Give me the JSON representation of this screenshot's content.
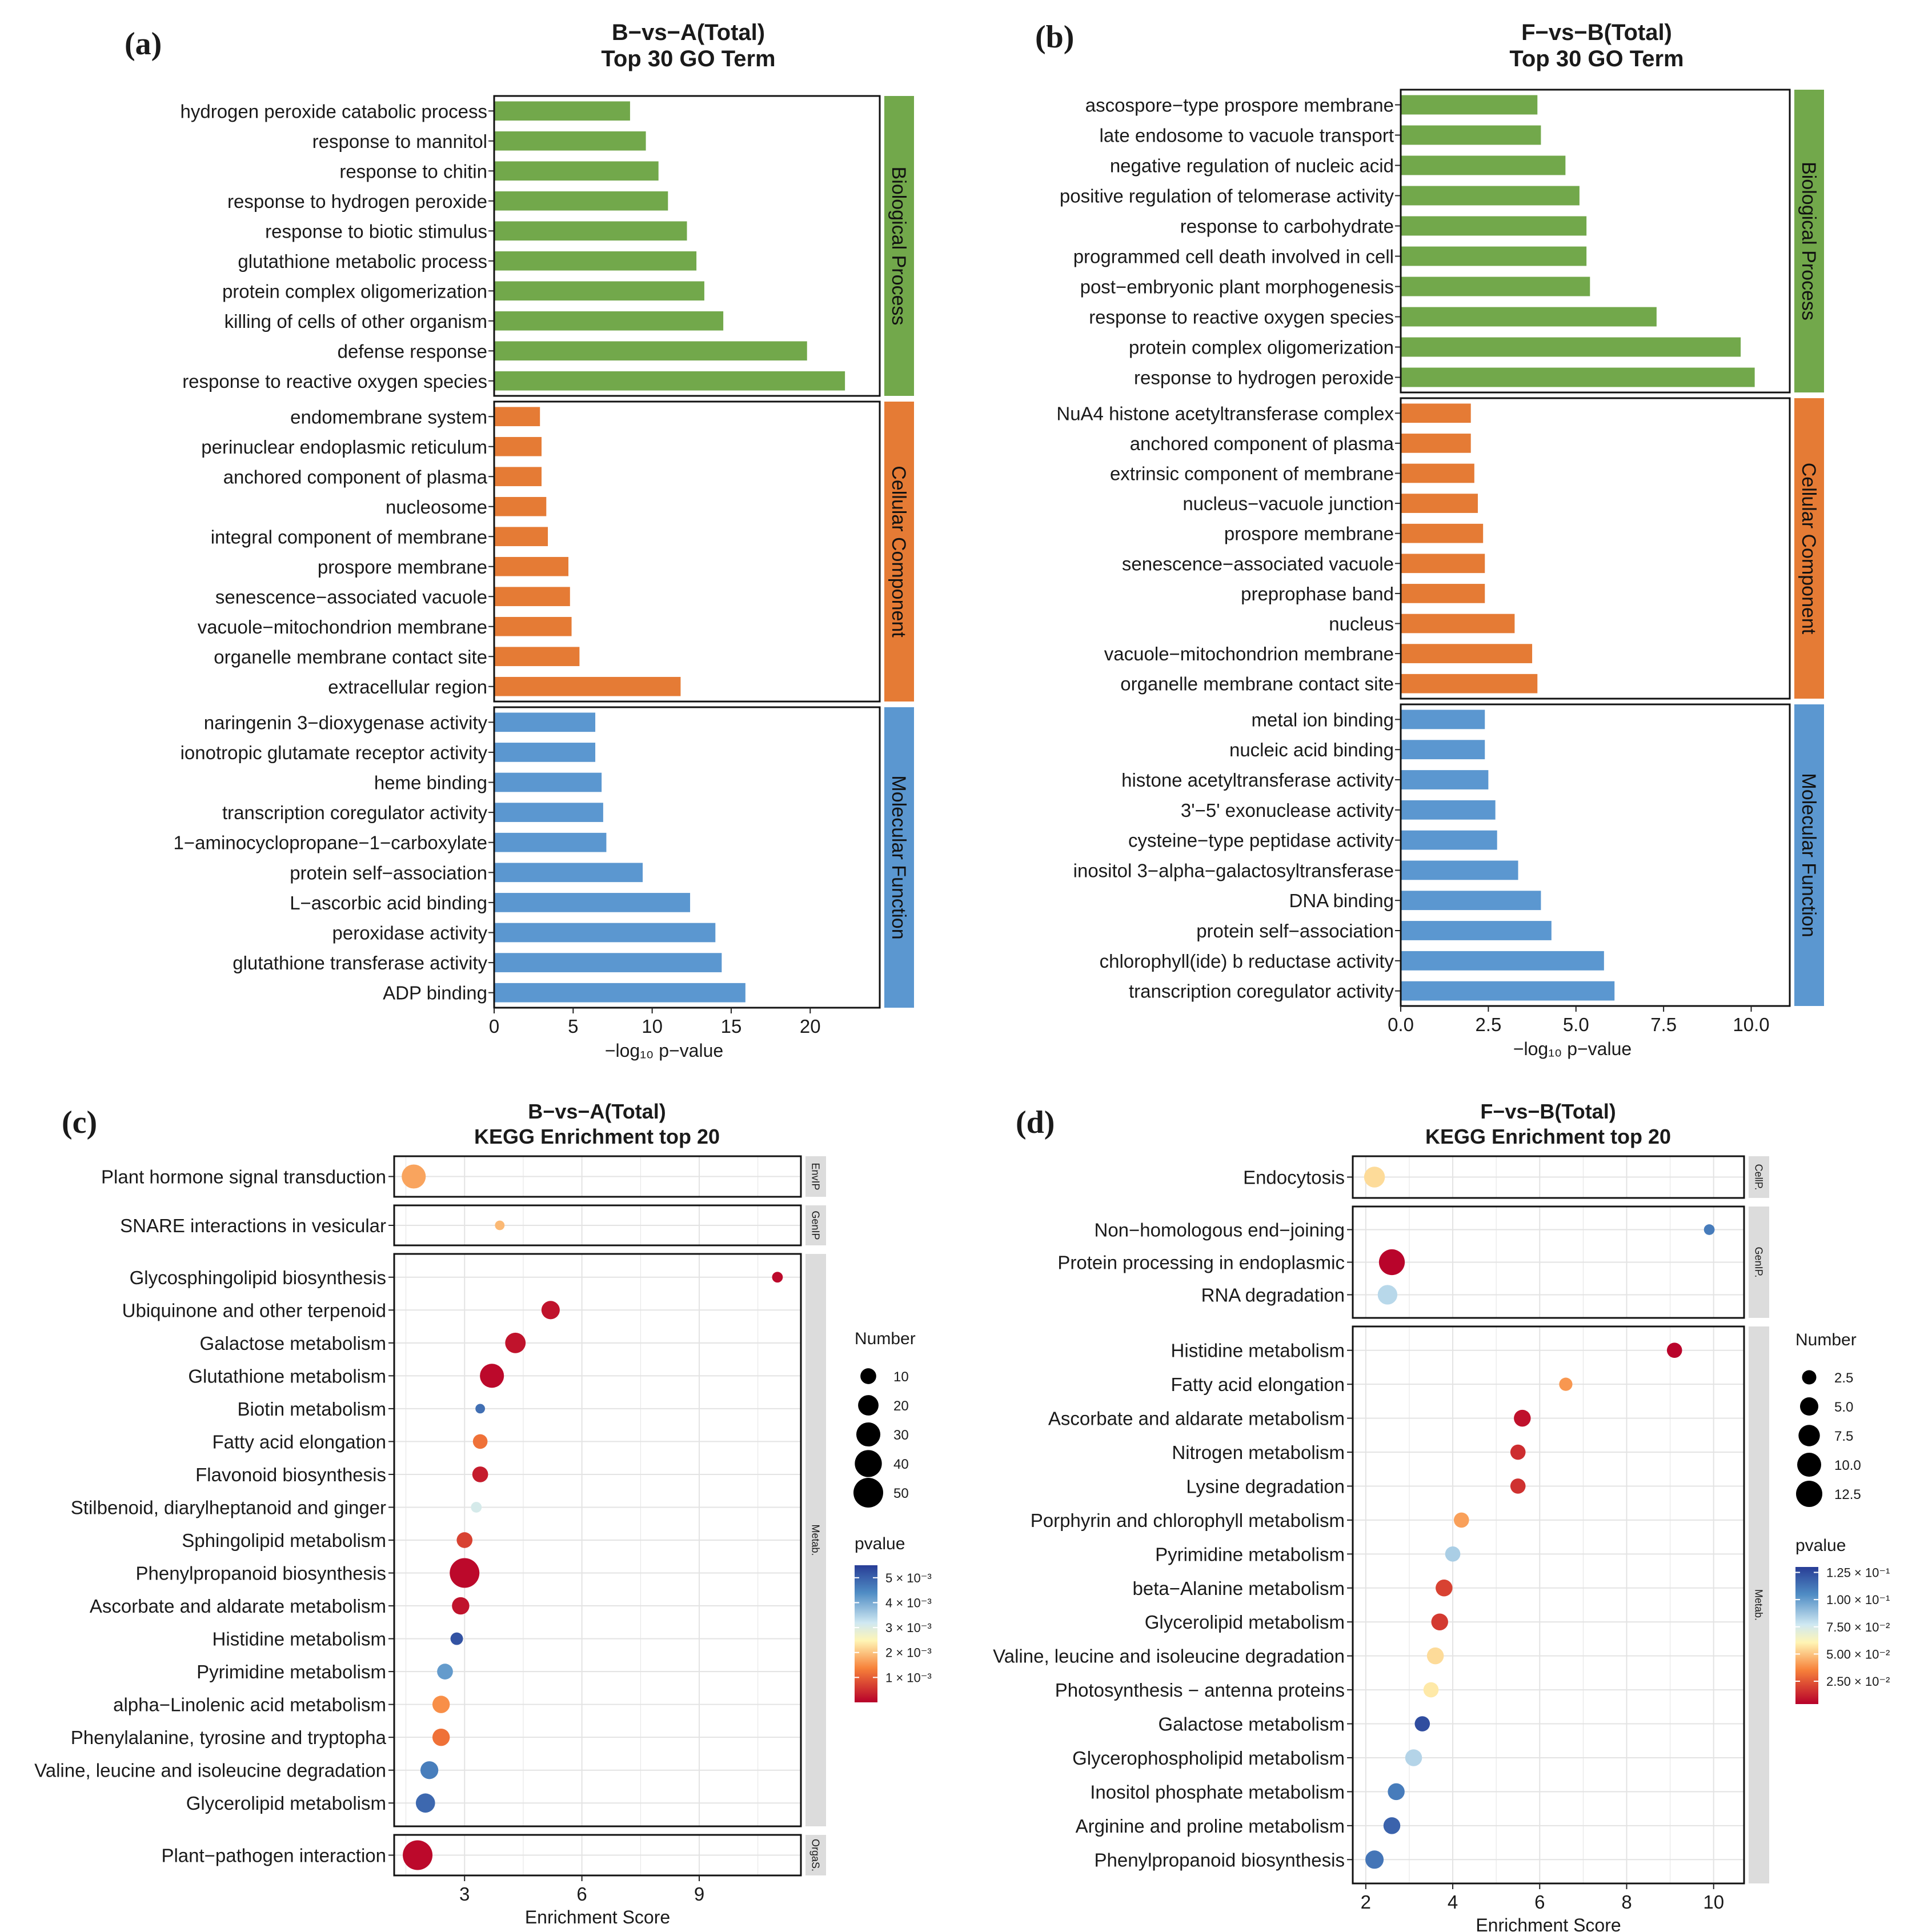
{
  "figure": {
    "panel_tags": [
      "(a)",
      "(b)",
      "(c)",
      "(d)"
    ]
  },
  "chart_data": [
    {
      "type": "bar",
      "panel": "(a)",
      "title": "B−vs−A(Total)",
      "subtitle": "Top 30 GO Term",
      "xlabel": "−log₁₀ p−value",
      "xlim": [
        0,
        24.4
      ],
      "xticks": [
        0,
        5,
        10,
        15,
        20
      ],
      "groups": [
        {
          "name": "Biological Process",
          "color": "#72a84b",
          "terms": [
            "hydrogen peroxide catabolic process",
            "response to mannitol",
            "response to chitin",
            "response to hydrogen peroxide",
            "response to biotic stimulus",
            "glutathione metabolic process",
            "protein complex oligomerization",
            "killing of cells of other organism",
            "defense response",
            "response to reactive oxygen species"
          ],
          "values": [
            8.6,
            9.6,
            10.4,
            11.0,
            12.2,
            12.8,
            13.3,
            14.5,
            19.8,
            22.2
          ]
        },
        {
          "name": "Cellular Component",
          "color": "#e57b35",
          "terms": [
            "endomembrane system",
            "perinuclear endoplasmic reticulum",
            "anchored component of plasma",
            "nucleosome",
            "integral component of membrane",
            "prospore membrane",
            "senescence−associated vacuole",
            "vacuole−mitochondrion membrane",
            "organelle membrane contact site",
            "extracellular region"
          ],
          "values": [
            2.9,
            3.0,
            3.0,
            3.3,
            3.4,
            4.7,
            4.8,
            4.9,
            5.4,
            11.8
          ]
        },
        {
          "name": "Molecular Function",
          "color": "#5b97d0",
          "terms": [
            "naringenin 3−dioxygenase activity",
            "ionotropic glutamate receptor activity",
            "heme binding",
            "transcription coregulator activity",
            "1−aminocyclopropane−1−carboxylate",
            "protein self−association",
            "L−ascorbic acid binding",
            "peroxidase activity",
            "glutathione transferase activity",
            "ADP binding"
          ],
          "values": [
            6.4,
            6.4,
            6.8,
            6.9,
            7.1,
            9.4,
            12.4,
            14.0,
            14.4,
            15.9
          ]
        }
      ]
    },
    {
      "type": "bar",
      "panel": "(b)",
      "title": "F−vs−B(Total)",
      "subtitle": "Top 30 GO Term",
      "xlabel": "−log₁₀ p−value",
      "xlim": [
        0,
        11.1
      ],
      "xticks": [
        "0.0",
        "2.5",
        "5.0",
        "7.5",
        "10.0"
      ],
      "groups": [
        {
          "name": "Biological Process",
          "color": "#72a84b",
          "terms": [
            "ascospore−type prospore membrane",
            "late endosome to vacuole transport",
            "negative regulation of nucleic acid",
            "positive regulation of telomerase activity",
            "response to carbohydrate",
            "programmed cell death involved in cell",
            "post−embryonic plant morphogenesis",
            "response to reactive oxygen species",
            "protein complex oligomerization",
            "response to hydrogen peroxide"
          ],
          "values": [
            3.9,
            4.0,
            4.7,
            5.1,
            5.3,
            5.3,
            5.4,
            7.3,
            9.7,
            10.1
          ]
        },
        {
          "name": "Cellular Component",
          "color": "#e57b35",
          "terms": [
            "NuA4 histone acetyltransferase complex",
            "anchored component of plasma",
            "extrinsic component of membrane",
            "nucleus−vacuole junction",
            "prospore membrane",
            "senescence−associated vacuole",
            "preprophase band",
            "nucleus",
            "vacuole−mitochondrion membrane",
            "organelle membrane contact site"
          ],
          "values": [
            2.0,
            2.0,
            2.1,
            2.2,
            2.35,
            2.4,
            2.4,
            3.25,
            3.75,
            3.9
          ]
        },
        {
          "name": "Molecular Function",
          "color": "#5b97d0",
          "terms": [
            "metal ion binding",
            "nucleic acid binding",
            "histone acetyltransferase activity",
            "3'−5' exonuclease activity",
            "cysteine−type peptidase activity",
            "inositol 3−alpha−galactosyltransferase",
            "DNA binding",
            "protein self−association",
            "chlorophyll(ide) b reductase activity",
            "transcription coregulator activity"
          ],
          "values": [
            2.4,
            2.4,
            2.5,
            2.7,
            2.75,
            3.35,
            4.0,
            4.3,
            5.8,
            6.1
          ]
        }
      ]
    },
    {
      "type": "scatter",
      "panel": "(c)",
      "title": "B−vs−A(Total)",
      "subtitle": "KEGG Enrichment top 20",
      "xlabel": "Enrichment Score",
      "xlim": [
        1.2,
        11.6
      ],
      "xticks": [
        3,
        6,
        9
      ],
      "size_legend": {
        "title": "Number",
        "values": [
          10,
          20,
          30,
          40,
          50
        ]
      },
      "color_legend": {
        "title": "pvalue",
        "labels": [
          "5 × 10⁻³",
          "4 × 10⁻³",
          "3 × 10⁻³",
          "2 × 10⁻³",
          "1 × 10⁻³"
        ],
        "ticks": [
          0.005,
          0.004,
          0.003,
          0.002,
          0.001
        ],
        "range": [
          0.0,
          0.0055
        ]
      },
      "groups": [
        {
          "name": "EnvIP",
          "rows": [
            {
              "term": "Plant hormone signal transduction",
              "x": 1.7,
              "n": 30,
              "p": 0.0017
            }
          ]
        },
        {
          "name": "GenIP",
          "rows": [
            {
              "term": "SNARE interactions in vesicular",
              "x": 3.9,
              "n": 2,
              "p": 0.0019
            }
          ]
        },
        {
          "name": "Metab.",
          "rows": [
            {
              "term": "Glycosphingolipid biosynthesis",
              "x": 11.0,
              "n": 3,
              "p": 0.0001
            },
            {
              "term": "Ubiquinone and other terpenoid",
              "x": 5.2,
              "n": 15,
              "p": 0.0002
            },
            {
              "term": "Galactose metabolism",
              "x": 4.3,
              "n": 20,
              "p": 0.0002
            },
            {
              "term": "Glutathione metabolism",
              "x": 3.7,
              "n": 30,
              "p": 0.0001
            },
            {
              "term": "Biotin metabolism",
              "x": 3.4,
              "n": 2,
              "p": 0.0048
            },
            {
              "term": "Fatty acid elongation",
              "x": 3.4,
              "n": 8,
              "p": 0.0012
            },
            {
              "term": "Flavonoid biosynthesis",
              "x": 3.4,
              "n": 10,
              "p": 0.0003
            },
            {
              "term": "Stilbenoid, diarylheptanoid and ginger",
              "x": 3.3,
              "n": 3,
              "p": 0.0031
            },
            {
              "term": "Sphingolipid metabolism",
              "x": 3.0,
              "n": 10,
              "p": 0.0007
            },
            {
              "term": "Phenylpropanoid biosynthesis",
              "x": 3.0,
              "n": 50,
              "p": 0.0001
            },
            {
              "term": "Ascorbate and aldarate metabolism",
              "x": 2.9,
              "n": 13,
              "p": 0.0002
            },
            {
              "term": "Histidine metabolism",
              "x": 2.8,
              "n": 5,
              "p": 0.0052
            },
            {
              "term": "Pyrimidine metabolism",
              "x": 2.5,
              "n": 10,
              "p": 0.0042
            },
            {
              "term": "alpha−Linolenic acid metabolism",
              "x": 2.4,
              "n": 13,
              "p": 0.0015
            },
            {
              "term": "Phenylalanine, tyrosine and tryptopha",
              "x": 2.4,
              "n": 13,
              "p": 0.0012
            },
            {
              "term": "Valine, leucine and isoleucine degradation",
              "x": 2.1,
              "n": 14,
              "p": 0.0046
            },
            {
              "term": "Glycerolipid metabolism",
              "x": 2.0,
              "n": 17,
              "p": 0.0049
            }
          ]
        },
        {
          "name": "OrgaS.",
          "rows": [
            {
              "term": "Plant−pathogen interaction",
              "x": 1.8,
              "n": 50,
              "p": 0.0001
            }
          ]
        }
      ]
    },
    {
      "type": "scatter",
      "panel": "(d)",
      "title": "F−vs−B(Total)",
      "subtitle": "KEGG Enrichment top 20",
      "xlabel": "Enrichment Score",
      "xlim": [
        1.7,
        10.7
      ],
      "xticks": [
        2,
        4,
        6,
        8,
        10
      ],
      "size_legend": {
        "title": "Number",
        "values": [
          "2.5",
          "5.0",
          "7.5",
          "10.0",
          "12.5"
        ]
      },
      "color_legend": {
        "title": "pvalue",
        "labels": [
          "1.25 × 10⁻¹",
          "1.00 × 10⁻¹",
          "7.50 × 10⁻²",
          "5.00 × 10⁻²",
          "2.50 × 10⁻²"
        ],
        "ticks": [
          0.125,
          0.1,
          0.075,
          0.05,
          0.025
        ],
        "range": [
          0.004,
          0.13
        ]
      },
      "groups": [
        {
          "name": "CellP.",
          "rows": [
            {
              "term": "Endocytosis",
              "x": 2.2,
              "n": 7,
              "p": 0.055
            }
          ]
        },
        {
          "name": "GenIP.",
          "rows": [
            {
              "term": "Non−homologous end−joining",
              "x": 9.9,
              "n": 1,
              "p": 0.11
            },
            {
              "term": "Protein processing in endoplasmic",
              "x": 2.6,
              "n": 12,
              "p": 0.005
            },
            {
              "term": "RNA degradation",
              "x": 2.5,
              "n": 6,
              "p": 0.082
            }
          ]
        },
        {
          "name": "Metab.",
          "rows": [
            {
              "term": "Histidine metabolism",
              "x": 9.1,
              "n": 3,
              "p": 0.005
            },
            {
              "term": "Fatty acid elongation",
              "x": 6.6,
              "n": 2,
              "p": 0.04
            },
            {
              "term": "Ascorbate and aldarate metabolism",
              "x": 5.6,
              "n": 4,
              "p": 0.008
            },
            {
              "term": "Nitrogen metabolism",
              "x": 5.5,
              "n": 3,
              "p": 0.015
            },
            {
              "term": "Lysine degradation",
              "x": 5.5,
              "n": 3,
              "p": 0.016
            },
            {
              "term": "Porphyrin and chlorophyll metabolism",
              "x": 4.2,
              "n": 3,
              "p": 0.042
            },
            {
              "term": "Pyrimidine metabolism",
              "x": 4.0,
              "n": 3,
              "p": 0.085
            },
            {
              "term": "beta−Alanine metabolism",
              "x": 3.8,
              "n": 4,
              "p": 0.02
            },
            {
              "term": "Glycerolipid metabolism",
              "x": 3.7,
              "n": 4,
              "p": 0.018
            },
            {
              "term": "Valine, leucine and isoleucine degradation",
              "x": 3.6,
              "n": 4,
              "p": 0.055
            },
            {
              "term": "Photosynthesis − antenna proteins",
              "x": 3.5,
              "n": 3,
              "p": 0.058
            },
            {
              "term": "Galactose metabolism",
              "x": 3.3,
              "n": 3,
              "p": 0.125
            },
            {
              "term": "Glycerophospholipid metabolism",
              "x": 3.1,
              "n": 4,
              "p": 0.083
            },
            {
              "term": "Inositol phosphate metabolism",
              "x": 2.7,
              "n": 4,
              "p": 0.11
            },
            {
              "term": "Arginine and proline metabolism",
              "x": 2.6,
              "n": 4,
              "p": 0.118
            },
            {
              "term": "Phenylpropanoid biosynthesis",
              "x": 2.2,
              "n": 5,
              "p": 0.112
            }
          ]
        }
      ]
    }
  ]
}
